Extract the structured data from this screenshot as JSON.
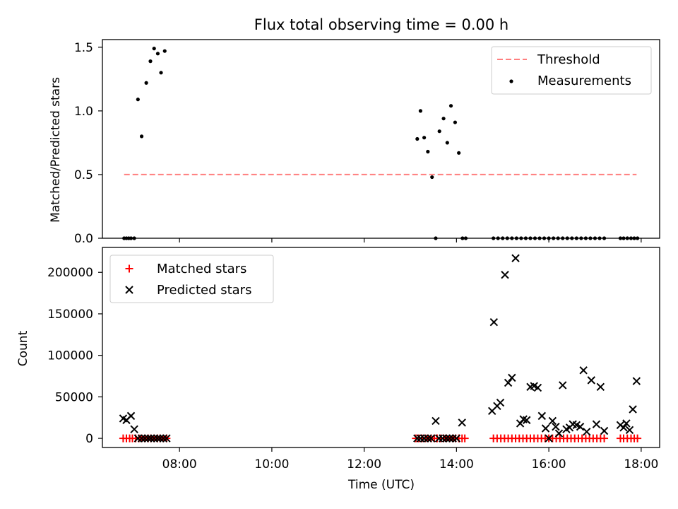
{
  "chart_data": [
    {
      "type": "scatter",
      "title": "Flux total observing time = 0.00 h",
      "xlabel": "",
      "ylabel": "Matched/Predicted stars",
      "xlim": [
        6.33,
        18.4
      ],
      "ylim": [
        0,
        1.56
      ],
      "yticks": [
        0.0,
        0.5,
        1.0,
        1.5
      ],
      "ytick_labels": [
        "0.0",
        "0.5",
        "1.0",
        "1.5"
      ],
      "xticks": [
        8,
        10,
        12,
        14,
        16,
        18
      ],
      "legend_position": "upper-right",
      "threshold": {
        "name": "Threshold",
        "value": 0.5,
        "x_range": [
          6.8,
          17.9
        ],
        "color": "#ff7f7f"
      },
      "measurements": {
        "name": "Measurements",
        "color": "#000000",
        "x": [
          6.8,
          6.85,
          6.9,
          6.95,
          7.02,
          7.1,
          7.18,
          7.28,
          7.37,
          7.45,
          7.53,
          7.6,
          7.68,
          13.15,
          13.22,
          13.3,
          13.38,
          13.47,
          13.55,
          13.63,
          13.72,
          13.8,
          13.88,
          13.97,
          14.05,
          14.13,
          14.2,
          14.8,
          14.9,
          15.0,
          15.1,
          15.2,
          15.3,
          15.4,
          15.5,
          15.6,
          15.7,
          15.8,
          15.9,
          16.0,
          16.1,
          16.2,
          16.3,
          16.4,
          16.5,
          16.6,
          16.7,
          16.8,
          16.9,
          17.0,
          17.1,
          17.2,
          17.55,
          17.62,
          17.7,
          17.78,
          17.85,
          17.92
        ],
        "y": [
          0,
          0,
          0,
          0,
          0,
          1.09,
          0.8,
          1.22,
          1.39,
          1.49,
          1.45,
          1.3,
          1.47,
          0.78,
          1.0,
          0.79,
          0.68,
          0.48,
          0,
          0.84,
          0.94,
          0.75,
          1.04,
          0.91,
          0.67,
          0,
          0,
          0,
          0,
          0,
          0,
          0,
          0,
          0,
          0,
          0,
          0,
          0,
          0,
          0,
          0,
          0,
          0,
          0,
          0,
          0,
          0,
          0,
          0,
          0,
          0,
          0,
          0,
          0,
          0,
          0,
          0,
          0
        ]
      }
    },
    {
      "type": "scatter",
      "title": "",
      "xlabel": "Time (UTC)",
      "ylabel": "Count",
      "xlim": [
        6.33,
        18.4
      ],
      "ylim": [
        -11000,
        230000
      ],
      "yticks": [
        0,
        50000,
        100000,
        150000,
        200000
      ],
      "ytick_labels": [
        "0",
        "50000",
        "100000",
        "150000",
        "200000"
      ],
      "xticks": [
        8,
        10,
        12,
        14,
        16,
        18
      ],
      "xtick_labels": [
        "08:00",
        "10:00",
        "12:00",
        "14:00",
        "16:00",
        "18:00"
      ],
      "legend_position": "upper-left",
      "series": [
        {
          "name": "Matched stars",
          "marker": "plus",
          "color": "#ff0000",
          "x": [
            6.78,
            6.85,
            6.92,
            6.98,
            7.05,
            7.12,
            7.18,
            7.25,
            7.32,
            7.38,
            7.45,
            7.52,
            7.58,
            7.65,
            7.72,
            13.12,
            13.18,
            13.25,
            13.32,
            13.38,
            13.45,
            13.52,
            13.58,
            13.65,
            13.72,
            13.78,
            13.85,
            13.92,
            13.98,
            14.05,
            14.12,
            14.18,
            14.8,
            14.88,
            14.96,
            15.04,
            15.12,
            15.2,
            15.28,
            15.36,
            15.44,
            15.52,
            15.6,
            15.68,
            15.76,
            15.84,
            15.92,
            16.0,
            16.08,
            16.16,
            16.24,
            16.32,
            16.4,
            16.48,
            16.56,
            16.64,
            16.72,
            16.8,
            16.88,
            16.96,
            17.04,
            17.12,
            17.2,
            17.55,
            17.62,
            17.7,
            17.78,
            17.85,
            17.92
          ],
          "values": [
            0,
            0,
            0,
            0,
            0,
            0,
            0,
            0,
            0,
            0,
            0,
            0,
            0,
            0,
            0,
            0,
            0,
            0,
            0,
            0,
            0,
            0,
            0,
            0,
            0,
            0,
            0,
            0,
            0,
            0,
            0,
            0,
            0,
            0,
            0,
            0,
            0,
            0,
            0,
            0,
            0,
            0,
            0,
            0,
            0,
            0,
            0,
            0,
            0,
            0,
            0,
            0,
            0,
            0,
            0,
            0,
            0,
            0,
            0,
            0,
            0,
            0,
            0,
            0,
            0,
            0,
            0,
            0,
            0
          ]
        },
        {
          "name": "Predicted stars",
          "marker": "x",
          "color": "#000000",
          "x": [
            6.78,
            6.85,
            6.95,
            7.02,
            7.1,
            7.18,
            7.25,
            7.32,
            7.38,
            7.45,
            7.52,
            7.58,
            7.65,
            7.72,
            13.15,
            13.22,
            13.3,
            13.38,
            13.45,
            13.55,
            13.62,
            13.7,
            13.78,
            13.85,
            13.92,
            14.0,
            14.12,
            14.77,
            14.81,
            14.88,
            14.95,
            15.05,
            15.12,
            15.2,
            15.28,
            15.38,
            15.45,
            15.52,
            15.6,
            15.68,
            15.76,
            15.85,
            15.93,
            16.0,
            16.08,
            16.15,
            16.22,
            16.3,
            16.38,
            16.45,
            16.52,
            16.6,
            16.68,
            16.75,
            16.82,
            16.92,
            17.03,
            17.12,
            17.2,
            17.55,
            17.62,
            17.68,
            17.75,
            17.82,
            17.9
          ],
          "values": [
            24000,
            22000,
            27000,
            11000,
            0,
            0,
            0,
            0,
            0,
            0,
            0,
            0,
            0,
            0,
            0,
            0,
            0,
            0,
            0,
            21000,
            0,
            0,
            0,
            0,
            0,
            0,
            19000,
            33000,
            140000,
            39000,
            43000,
            197000,
            67000,
            73000,
            217000,
            18000,
            23000,
            22000,
            62000,
            63000,
            61000,
            27000,
            12000,
            0,
            21000,
            14000,
            6000,
            64000,
            11000,
            13000,
            17000,
            16000,
            14000,
            82000,
            8000,
            70000,
            17000,
            62000,
            9000,
            16000,
            13000,
            18000,
            10000,
            35000,
            69000
          ]
        }
      ]
    }
  ]
}
